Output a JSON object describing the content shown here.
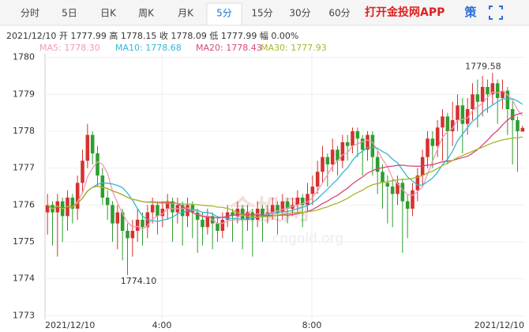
{
  "tabs": [
    "分时",
    "5日",
    "日K",
    "周K",
    "月K",
    "5分",
    "15分",
    "30分",
    "60分"
  ],
  "active_tab": 5,
  "app_link": "打开金投网APP",
  "strategy": "策",
  "info": {
    "date": "2021/12/10",
    "items": [
      {
        "label": "开",
        "value": "1777.99"
      },
      {
        "label": "高",
        "value": "1778.15"
      },
      {
        "label": "收",
        "value": "1778.09"
      },
      {
        "label": "低",
        "value": "1777.99"
      },
      {
        "label": "幅",
        "value": "0.00%"
      }
    ]
  },
  "chart_data": {
    "type": "candlestick",
    "ylim": [
      1772.9,
      1780.1
    ],
    "yticks": [
      1773,
      1774,
      1775,
      1776,
      1777,
      1778,
      1779,
      1780
    ],
    "grid": true,
    "up_color": "#d4322f",
    "down_color": "#2e9e2e",
    "x_labels": [
      "2021/12/10",
      "4:00",
      "8:00",
      "2021/12/10"
    ],
    "annotations": [
      "1779.58",
      "1774.10"
    ],
    "watermark": [
      "金投网",
      "cngold.org"
    ],
    "ma": [
      {
        "label": "MA5: 1778.30",
        "window": 5,
        "color": "#f29ab4"
      },
      {
        "label": "MA10: 1778.68",
        "window": 10,
        "color": "#35b6d6"
      },
      {
        "label": "MA20: 1778.43",
        "window": 20,
        "color": "#d8487a"
      },
      {
        "label": "MA30: 1777.93",
        "window": 30,
        "color": "#a6b72c"
      }
    ],
    "candles": [
      [
        1775.8,
        1776.3,
        1775.2,
        1776.0
      ],
      [
        1776.0,
        1776.1,
        1774.9,
        1775.8
      ],
      [
        1775.8,
        1776.3,
        1774.6,
        1776.1
      ],
      [
        1776.1,
        1776.2,
        1775.0,
        1775.7
      ],
      [
        1775.7,
        1776.4,
        1775.3,
        1776.2
      ],
      [
        1776.2,
        1776.3,
        1775.5,
        1775.9
      ],
      [
        1775.9,
        1776.8,
        1775.6,
        1776.6
      ],
      [
        1776.6,
        1777.5,
        1776.3,
        1777.2
      ],
      [
        1777.2,
        1778.2,
        1777.0,
        1777.9
      ],
      [
        1777.9,
        1778.0,
        1777.1,
        1777.4
      ],
      [
        1777.4,
        1777.6,
        1776.5,
        1776.8
      ],
      [
        1776.8,
        1777.0,
        1776.0,
        1776.2
      ],
      [
        1776.2,
        1776.4,
        1775.6,
        1776.0
      ],
      [
        1776.0,
        1776.1,
        1775.0,
        1775.5
      ],
      [
        1775.5,
        1776.0,
        1774.8,
        1775.8
      ],
      [
        1775.8,
        1775.9,
        1774.5,
        1775.3
      ],
      [
        1775.3,
        1775.5,
        1774.1,
        1775.1
      ],
      [
        1775.1,
        1775.6,
        1774.6,
        1775.3
      ],
      [
        1775.3,
        1775.9,
        1775.0,
        1775.6
      ],
      [
        1775.6,
        1775.8,
        1774.9,
        1775.4
      ],
      [
        1775.4,
        1776.0,
        1775.1,
        1775.8
      ],
      [
        1775.8,
        1776.2,
        1775.5,
        1776.0
      ],
      [
        1776.0,
        1776.1,
        1775.2,
        1775.7
      ],
      [
        1775.7,
        1776.1,
        1775.4,
        1775.9
      ],
      [
        1775.9,
        1776.3,
        1775.6,
        1776.1
      ],
      [
        1776.1,
        1776.2,
        1775.0,
        1775.8
      ],
      [
        1775.8,
        1776.2,
        1775.5,
        1776.0
      ],
      [
        1776.0,
        1776.1,
        1774.9,
        1775.7
      ],
      [
        1775.7,
        1776.2,
        1775.4,
        1776.0
      ],
      [
        1776.0,
        1776.1,
        1775.1,
        1775.8
      ],
      [
        1775.8,
        1775.9,
        1774.7,
        1775.6
      ],
      [
        1775.6,
        1775.8,
        1774.9,
        1775.4
      ],
      [
        1775.4,
        1775.9,
        1775.2,
        1775.7
      ],
      [
        1775.7,
        1775.8,
        1774.8,
        1775.5
      ],
      [
        1775.5,
        1775.7,
        1775.0,
        1775.3
      ],
      [
        1775.3,
        1775.8,
        1775.1,
        1775.6
      ],
      [
        1775.6,
        1776.0,
        1775.4,
        1775.8
      ],
      [
        1775.8,
        1775.9,
        1775.0,
        1775.7
      ],
      [
        1775.7,
        1776.1,
        1775.5,
        1775.9
      ],
      [
        1775.9,
        1776.0,
        1774.8,
        1775.6
      ],
      [
        1775.6,
        1776.0,
        1775.3,
        1775.8
      ],
      [
        1775.8,
        1775.9,
        1774.6,
        1775.6
      ],
      [
        1775.6,
        1776.1,
        1775.4,
        1775.9
      ],
      [
        1775.9,
        1776.0,
        1775.0,
        1775.7
      ],
      [
        1775.7,
        1776.0,
        1775.5,
        1775.8
      ],
      [
        1775.8,
        1776.2,
        1775.6,
        1776.0
      ],
      [
        1776.0,
        1776.1,
        1775.2,
        1775.8
      ],
      [
        1775.8,
        1776.3,
        1775.6,
        1776.1
      ],
      [
        1776.1,
        1776.2,
        1775.5,
        1775.9
      ],
      [
        1775.9,
        1776.2,
        1775.7,
        1776.0
      ],
      [
        1776.0,
        1776.4,
        1775.8,
        1776.2
      ],
      [
        1776.2,
        1776.3,
        1775.4,
        1776.0
      ],
      [
        1776.0,
        1776.6,
        1775.8,
        1776.3
      ],
      [
        1776.3,
        1776.8,
        1776.0,
        1776.5
      ],
      [
        1776.5,
        1777.2,
        1776.3,
        1776.9
      ],
      [
        1776.9,
        1777.6,
        1776.6,
        1777.3
      ],
      [
        1777.3,
        1777.4,
        1776.5,
        1777.1
      ],
      [
        1777.1,
        1777.8,
        1776.9,
        1777.5
      ],
      [
        1777.5,
        1777.6,
        1776.8,
        1777.2
      ],
      [
        1777.2,
        1777.9,
        1777.0,
        1777.7
      ],
      [
        1777.7,
        1777.9,
        1777.2,
        1777.6
      ],
      [
        1777.6,
        1778.1,
        1777.4,
        1778.0
      ],
      [
        1778.0,
        1778.1,
        1777.3,
        1777.8
      ],
      [
        1777.8,
        1777.9,
        1776.8,
        1777.5
      ],
      [
        1777.5,
        1778.0,
        1777.2,
        1777.9
      ],
      [
        1777.9,
        1778.0,
        1776.8,
        1777.3
      ],
      [
        1777.3,
        1777.5,
        1776.3,
        1776.9
      ],
      [
        1776.9,
        1777.1,
        1775.9,
        1776.6
      ],
      [
        1776.6,
        1776.8,
        1775.5,
        1776.5
      ],
      [
        1776.5,
        1776.7,
        1775.4,
        1776.3
      ],
      [
        1776.3,
        1776.8,
        1776.0,
        1776.6
      ],
      [
        1776.6,
        1776.7,
        1774.7,
        1776.1
      ],
      [
        1776.1,
        1776.3,
        1775.1,
        1775.9
      ],
      [
        1775.9,
        1776.6,
        1775.7,
        1776.4
      ],
      [
        1776.4,
        1777.0,
        1776.1,
        1776.8
      ],
      [
        1776.8,
        1777.5,
        1776.5,
        1777.3
      ],
      [
        1777.3,
        1778.0,
        1777.0,
        1777.8
      ],
      [
        1777.8,
        1778.0,
        1777.0,
        1777.6
      ],
      [
        1777.6,
        1778.3,
        1777.3,
        1778.1
      ],
      [
        1778.1,
        1778.6,
        1777.2,
        1778.4
      ],
      [
        1778.4,
        1778.5,
        1777.1,
        1778.0
      ],
      [
        1778.0,
        1778.8,
        1777.6,
        1778.3
      ],
      [
        1778.3,
        1779.0,
        1778.0,
        1778.7
      ],
      [
        1778.7,
        1778.9,
        1777.4,
        1778.2
      ],
      [
        1778.2,
        1778.9,
        1777.9,
        1778.6
      ],
      [
        1778.6,
        1779.3,
        1778.3,
        1779.0
      ],
      [
        1779.0,
        1779.4,
        1778.1,
        1778.8
      ],
      [
        1778.8,
        1779.5,
        1778.4,
        1779.2
      ],
      [
        1779.2,
        1779.4,
        1778.5,
        1779.0
      ],
      [
        1779.0,
        1779.58,
        1778.7,
        1779.3
      ],
      [
        1779.3,
        1779.4,
        1778.2,
        1778.9
      ],
      [
        1778.9,
        1779.4,
        1778.6,
        1779.1
      ],
      [
        1779.1,
        1779.2,
        1777.9,
        1778.6
      ],
      [
        1778.6,
        1778.8,
        1777.1,
        1778.3
      ],
      [
        1778.3,
        1778.4,
        1776.9,
        1778.0
      ],
      [
        1777.99,
        1778.15,
        1777.99,
        1778.09
      ]
    ]
  }
}
